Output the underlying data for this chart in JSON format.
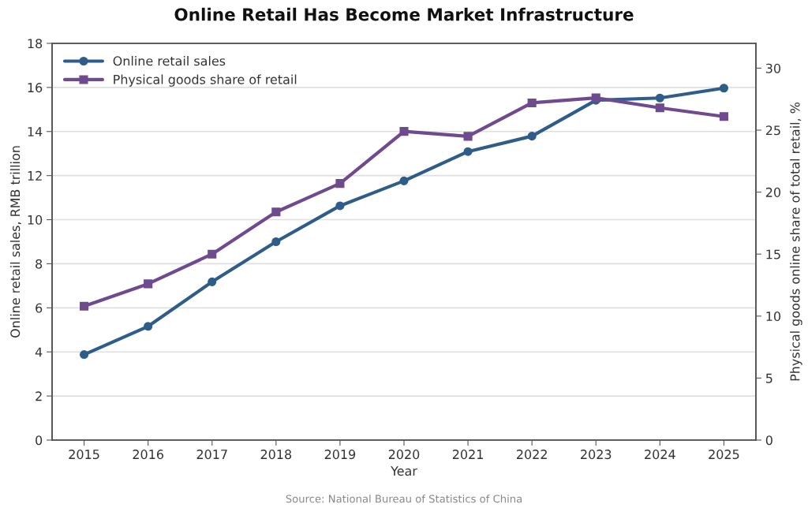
{
  "chart_data": {
    "type": "line",
    "title": "Online Retail Has Become Market Infrastructure",
    "xlabel": "Year",
    "ylabel": "Online retail sales, RMB trillion",
    "y2label": "Physical goods online share of total retail, %",
    "annotations": [
      "Source: National Bureau of Statistics of China"
    ],
    "categories": [
      "2015",
      "2016",
      "2017",
      "2018",
      "2019",
      "2020",
      "2021",
      "2022",
      "2023",
      "2024",
      "2025"
    ],
    "series": [
      {
        "name": "Online retail sales",
        "color": "#2f5d8a",
        "marker": "circle",
        "values": [
          3.88,
          5.16,
          7.18,
          9.0,
          10.63,
          11.76,
          13.09,
          13.79,
          15.42,
          15.52,
          15.97
        ]
      },
      {
        "name": "Physical goods share of retail",
        "color": "#6f4a8e",
        "marker": "square",
        "axis": "y2",
        "values": [
          10.8,
          12.6,
          15.0,
          18.4,
          20.7,
          24.9,
          24.5,
          27.2,
          27.6,
          26.8,
          26.1
        ]
      }
    ],
    "ylim": [
      0,
      18
    ],
    "yticks": [
      0,
      2,
      4,
      6,
      8,
      10,
      12,
      14,
      16,
      18
    ],
    "y2lim": [
      0,
      32
    ],
    "y2ticks": [
      0,
      5,
      10,
      15,
      20,
      25,
      30
    ],
    "grid": "y",
    "legend": "top left",
    "line_style": "solid"
  }
}
